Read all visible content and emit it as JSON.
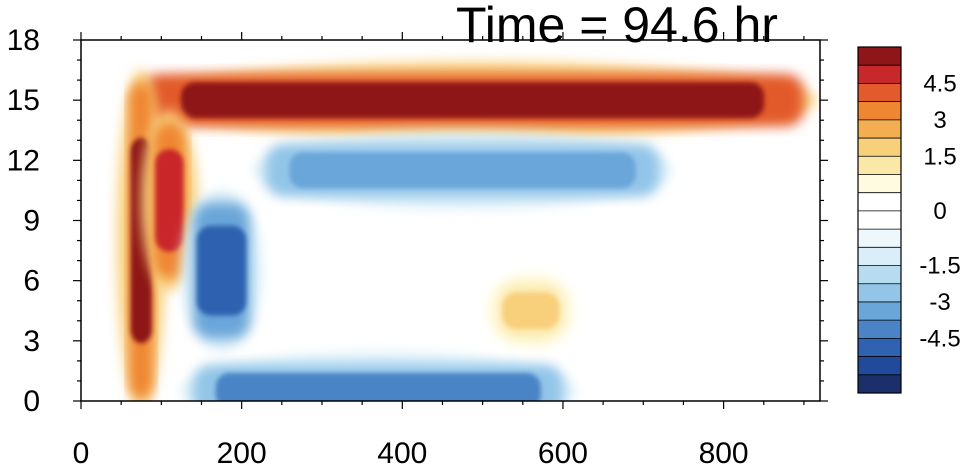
{
  "chart_data": {
    "type": "heatmap",
    "title": "Time = 94.6 hr",
    "xlabel": "",
    "ylabel": "",
    "xlim": [
      0,
      920
    ],
    "ylim": [
      0,
      18
    ],
    "x_ticks": [
      0,
      200,
      400,
      600,
      800
    ],
    "y_ticks": [
      0,
      3,
      6,
      9,
      12,
      15,
      18
    ],
    "colorbar": {
      "levels": [
        -6,
        -5.25,
        -4.5,
        -3.75,
        -3,
        -2.25,
        -1.5,
        -0.75,
        -0.25,
        0,
        0.25,
        0.75,
        1.5,
        2.25,
        3,
        3.75,
        4.5,
        5.25
      ],
      "colors": [
        "#1a2f6b",
        "#214a9a",
        "#2f62b0",
        "#4a84c6",
        "#6ba6d9",
        "#92c5e8",
        "#b7dcf0",
        "#d9eef8",
        "#eef8fc",
        "#ffffff",
        "#ffffff",
        "#fffbe0",
        "#fbe7a8",
        "#f8cf7a",
        "#f4ae52",
        "#ef8632",
        "#e35a2c",
        "#c9282a",
        "#8e1518"
      ],
      "tick_labels": [
        "4.5",
        "3",
        "1.5",
        "0",
        "-1.5",
        "-3",
        "-4.5"
      ],
      "tick_values": [
        4.5,
        3,
        1.5,
        0,
        -1.5,
        -3,
        -4.5
      ]
    },
    "features": [
      {
        "name": "upper-positive-band",
        "x": [
          75,
          900
        ],
        "y_center": 15.0,
        "value": 6.0
      },
      {
        "name": "negative-band-below",
        "x": [
          230,
          720
        ],
        "y_center": 11.5,
        "value": -3.5
      },
      {
        "name": "surface-negative-band",
        "x": [
          140,
          600
        ],
        "y_center": 0.5,
        "value": -4.0
      },
      {
        "name": "early-oscillation-column-1",
        "x": [
          60,
          90
        ],
        "y_range": [
          0,
          16
        ],
        "value": 5.5
      },
      {
        "name": "early-oscillation-column-2",
        "x": [
          90,
          130
        ],
        "y_range": [
          6,
          14
        ],
        "value": 5.0
      },
      {
        "name": "early-negative-column",
        "x": [
          140,
          210
        ],
        "y_range": [
          3,
          10
        ],
        "value": -5.0
      },
      {
        "name": "mid-positive-patch",
        "x": [
          520,
          600
        ],
        "y_center": 4.5,
        "value": 2.0
      }
    ]
  }
}
